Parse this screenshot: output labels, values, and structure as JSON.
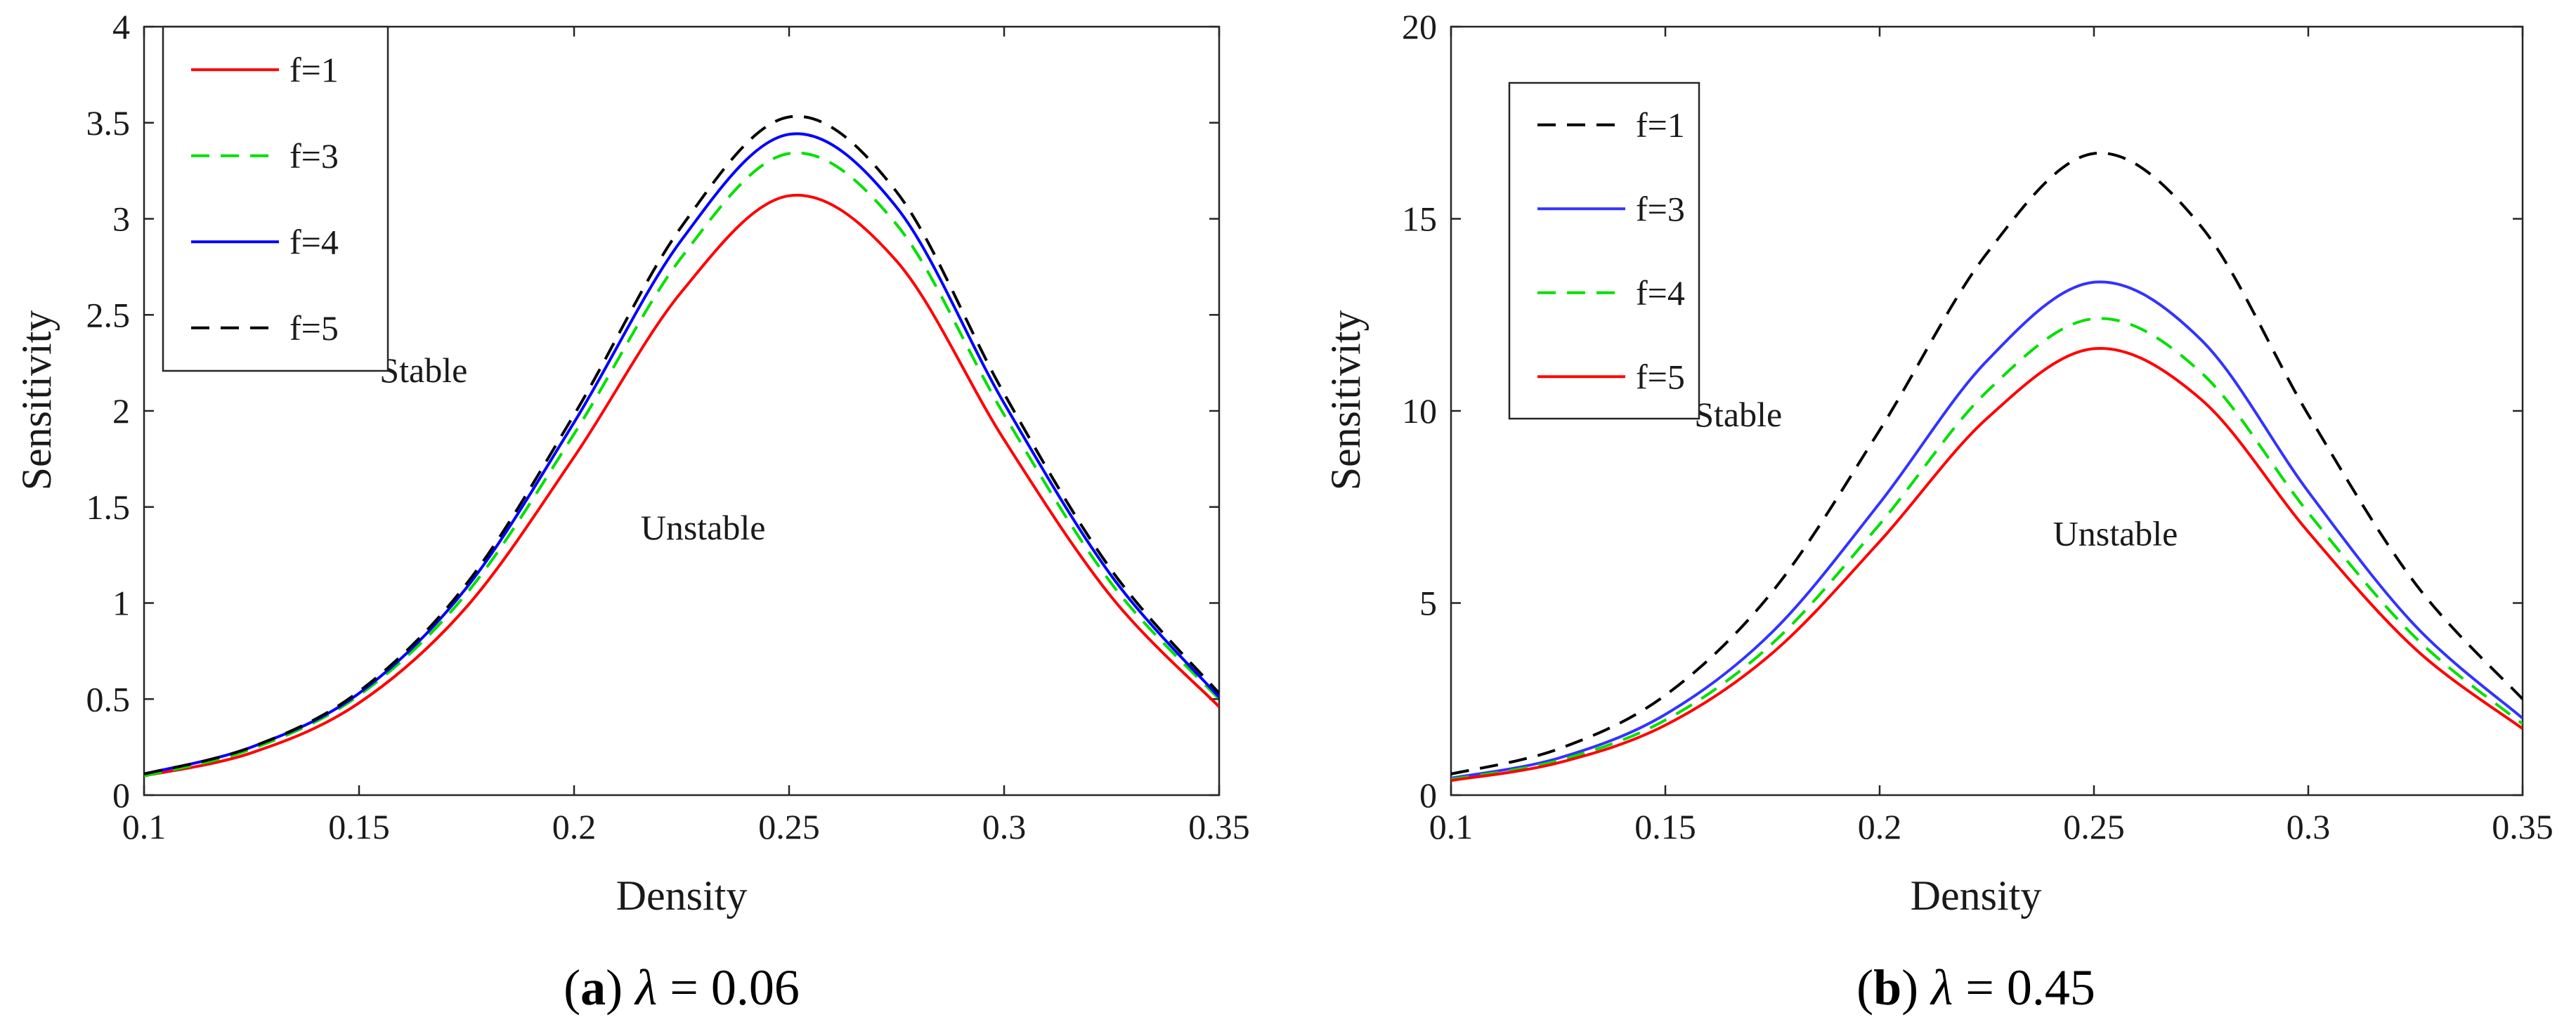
{
  "chart_data": [
    {
      "type": "line",
      "panel": "a",
      "caption": {
        "letter": "a",
        "symbol": "λ",
        "value": "0.06"
      },
      "xlabel": "Density",
      "ylabel": "Sensitivity",
      "xlim": [
        0.1,
        0.35
      ],
      "ylim": [
        0,
        4
      ],
      "xticks": [
        0.1,
        0.15,
        0.2,
        0.25,
        0.3,
        0.35
      ],
      "xtick_labels": [
        "0.1",
        "0.15",
        "0.2",
        "0.25",
        "0.3",
        "0.35"
      ],
      "yticks": [
        0,
        0.5,
        1,
        1.5,
        2,
        2.5,
        3,
        3.5,
        4
      ],
      "ytick_labels": [
        "0",
        "0.5",
        "1",
        "1.5",
        "2",
        "2.5",
        "3",
        "3.5",
        "4"
      ],
      "grid": false,
      "legend_position": "top-left",
      "annotations": [
        {
          "text": "Stable",
          "x": 0.165,
          "y": 2.15
        },
        {
          "text": "Unstable",
          "x": 0.23,
          "y": 1.33
        }
      ],
      "x": [
        0.1,
        0.125,
        0.15,
        0.175,
        0.2,
        0.225,
        0.25,
        0.275,
        0.3,
        0.325,
        0.35
      ],
      "series": [
        {
          "name": "f=1",
          "color": "#ff0000",
          "dash": "solid",
          "values": [
            0.1,
            0.22,
            0.48,
            0.98,
            1.76,
            2.62,
            3.12,
            2.78,
            1.85,
            1.03,
            0.46
          ]
        },
        {
          "name": "f=3",
          "color": "#00e000",
          "dash": "dashed",
          "values": [
            0.1,
            0.24,
            0.52,
            1.05,
            1.88,
            2.8,
            3.34,
            2.97,
            1.98,
            1.1,
            0.5
          ]
        },
        {
          "name": "f=4",
          "color": "#0000ff",
          "dash": "solid",
          "values": [
            0.11,
            0.25,
            0.53,
            1.08,
            1.94,
            2.89,
            3.44,
            3.06,
            2.04,
            1.14,
            0.51
          ]
        },
        {
          "name": "f=5",
          "color": "#000000",
          "dash": "dashed",
          "values": [
            0.11,
            0.25,
            0.54,
            1.1,
            1.98,
            2.96,
            3.53,
            3.14,
            2.09,
            1.17,
            0.53
          ]
        }
      ]
    },
    {
      "type": "line",
      "panel": "b",
      "caption": {
        "letter": "b",
        "symbol": "λ",
        "value": "0.45"
      },
      "xlabel": "Density",
      "ylabel": "Sensitivity",
      "xlim": [
        0.1,
        0.35
      ],
      "ylim": [
        0,
        20
      ],
      "xticks": [
        0.1,
        0.15,
        0.2,
        0.25,
        0.3,
        0.35
      ],
      "xtick_labels": [
        "0.1",
        "0.15",
        "0.2",
        "0.25",
        "0.3",
        "0.35"
      ],
      "yticks": [
        0,
        5,
        10,
        15,
        20
      ],
      "ytick_labels": [
        "0",
        "5",
        "10",
        "15",
        "20"
      ],
      "grid": false,
      "legend_position": "top-left",
      "annotations": [
        {
          "text": "Stable",
          "x": 0.167,
          "y": 9.6
        },
        {
          "text": "Unstable",
          "x": 0.255,
          "y": 6.5
        }
      ],
      "x": [
        0.1,
        0.125,
        0.15,
        0.175,
        0.2,
        0.225,
        0.25,
        0.275,
        0.3,
        0.325,
        0.35
      ],
      "series": [
        {
          "name": "f=1",
          "color": "#000000",
          "dash": "dashed",
          "values": [
            0.55,
            1.2,
            2.6,
            5.3,
            9.5,
            14.1,
            16.7,
            14.8,
            9.9,
            5.5,
            2.5
          ]
        },
        {
          "name": "f=3",
          "color": "#3333ff",
          "dash": "solid",
          "values": [
            0.44,
            0.96,
            2.1,
            4.25,
            7.6,
            11.3,
            13.35,
            11.85,
            7.9,
            4.4,
            2.0
          ]
        },
        {
          "name": "f=4",
          "color": "#00e000",
          "dash": "dashed",
          "values": [
            0.41,
            0.9,
            1.95,
            3.95,
            7.05,
            10.5,
            12.4,
            11.0,
            7.35,
            4.1,
            1.85
          ]
        },
        {
          "name": "f=5",
          "color": "#ff0000",
          "dash": "solid",
          "values": [
            0.38,
            0.84,
            1.82,
            3.7,
            6.6,
            9.8,
            11.62,
            10.3,
            6.85,
            3.8,
            1.73
          ]
        }
      ]
    }
  ]
}
